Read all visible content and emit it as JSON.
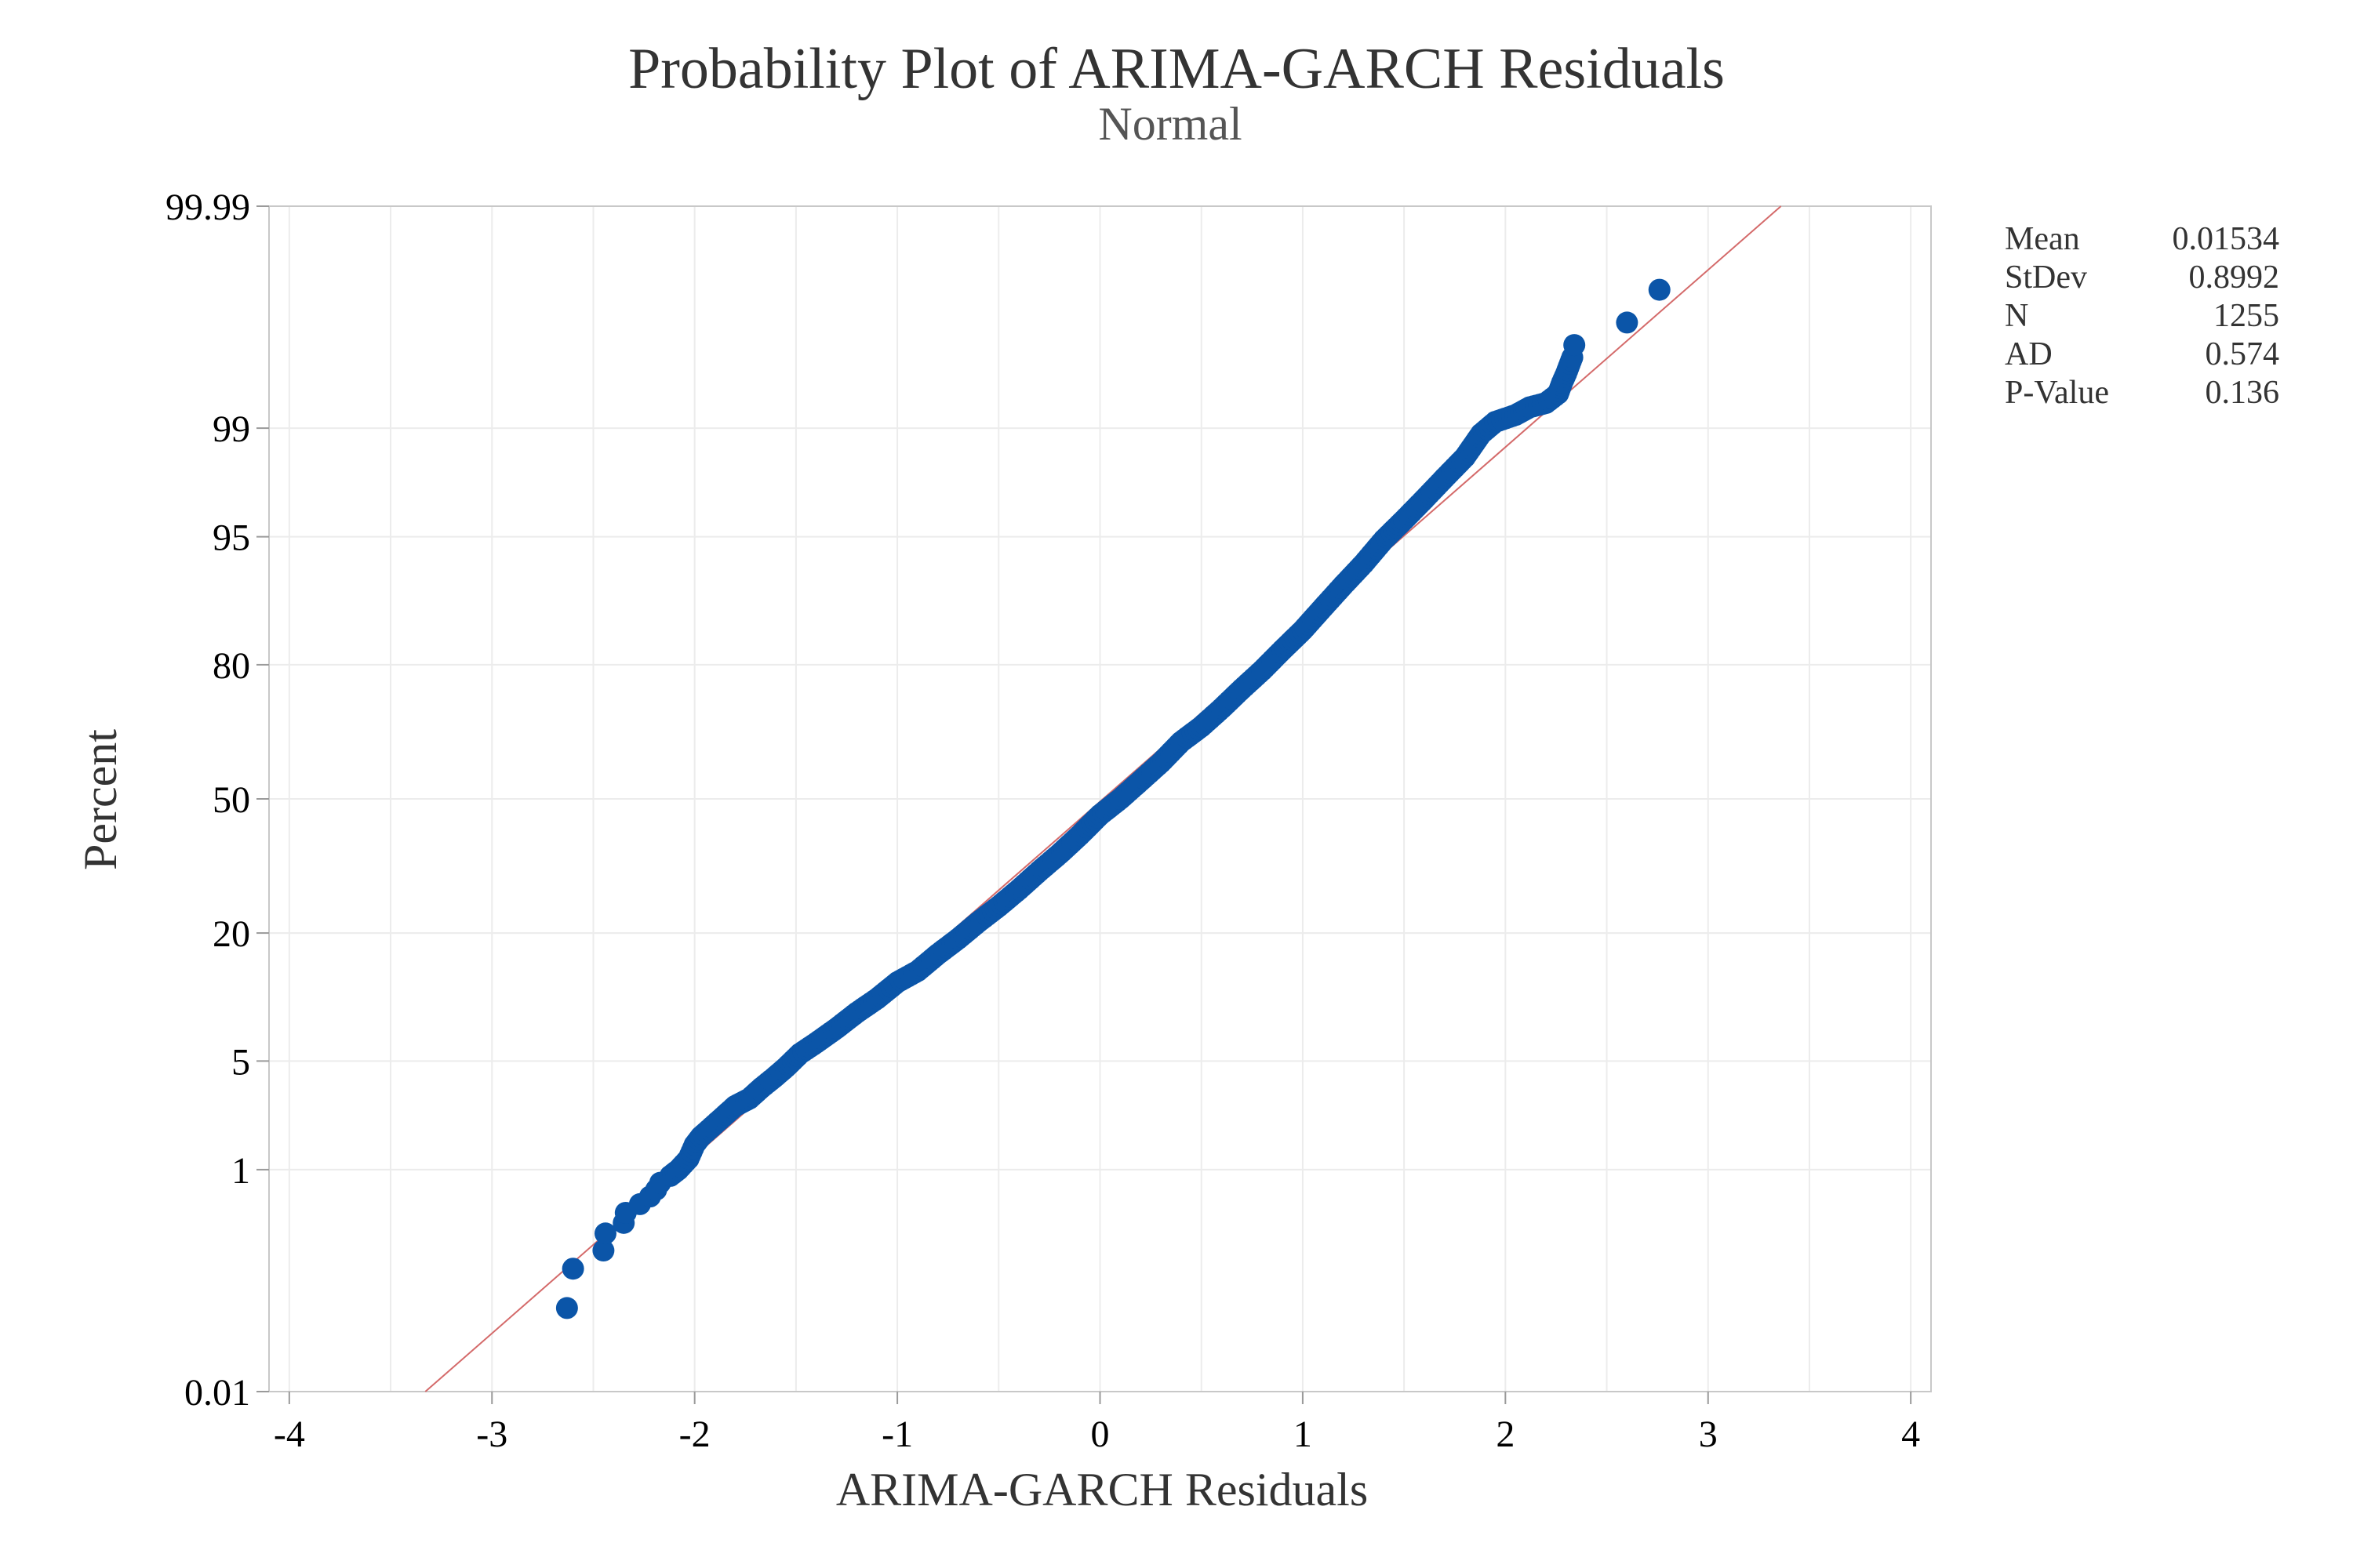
{
  "chart_data": {
    "type": "scatter",
    "title": "Probability Plot of ARIMA-GARCH Residuals",
    "subtitle": "Normal",
    "xlabel": "ARIMA-GARCH Residuals",
    "ylabel": "Percent",
    "xlim": [
      -4.1,
      4.1
    ],
    "ylim_percent": [
      0.01,
      99.99
    ],
    "y_scale": "normal-probability",
    "x_ticks": [
      -4,
      -3,
      -2,
      -1,
      0,
      1,
      2,
      3,
      4
    ],
    "x_tick_labels": [
      "-4",
      "-3",
      "-2",
      "-1",
      "0",
      "1",
      "2",
      "3",
      "4"
    ],
    "y_ticks": [
      0.01,
      1,
      5,
      20,
      50,
      80,
      95,
      99,
      99.99
    ],
    "y_tick_labels": [
      "0.01",
      "1",
      "5",
      "20",
      "50",
      "80",
      "95",
      "99",
      "99.99"
    ],
    "grid": true,
    "marker_color": "#0b55a8",
    "fit_line_color": "#d46a6a",
    "fit_line": {
      "mean": 0.01534,
      "stdev": 0.8992
    },
    "stats": [
      {
        "label": "Mean",
        "value": "0.01534"
      },
      {
        "label": "StDev",
        "value": "0.8992"
      },
      {
        "label": "N",
        "value": "1255"
      },
      {
        "label": "AD",
        "value": "0.574"
      },
      {
        "label": "P-Value",
        "value": "0.136"
      }
    ],
    "legend_position": "top-right",
    "points": [
      [
        -2.63,
        0.07
      ],
      [
        -2.6,
        0.16
      ],
      [
        -2.45,
        0.23
      ],
      [
        -2.44,
        0.32
      ],
      [
        -2.35,
        0.39
      ],
      [
        -2.34,
        0.47
      ],
      [
        -2.27,
        0.55
      ],
      [
        -2.22,
        0.63
      ],
      [
        -2.19,
        0.71
      ],
      [
        -2.17,
        0.8
      ],
      [
        -2.12,
        0.9
      ],
      [
        -2.08,
        1.0
      ],
      [
        -2.03,
        1.2
      ],
      [
        -2.0,
        1.5
      ],
      [
        -1.97,
        1.7
      ],
      [
        -1.93,
        1.9
      ],
      [
        -1.86,
        2.3
      ],
      [
        -1.8,
        2.7
      ],
      [
        -1.73,
        3.0
      ],
      [
        -1.67,
        3.5
      ],
      [
        -1.61,
        4.0
      ],
      [
        -1.55,
        4.6
      ],
      [
        -1.48,
        5.5
      ],
      [
        -1.4,
        6.3
      ],
      [
        -1.3,
        7.5
      ],
      [
        -1.2,
        9.0
      ],
      [
        -1.1,
        10.5
      ],
      [
        -1.0,
        12.5
      ],
      [
        -0.9,
        14.0
      ],
      [
        -0.8,
        16.5
      ],
      [
        -0.7,
        19.0
      ],
      [
        -0.6,
        22.0
      ],
      [
        -0.5,
        25.0
      ],
      [
        -0.4,
        28.5
      ],
      [
        -0.3,
        32.5
      ],
      [
        -0.2,
        36.5
      ],
      [
        -0.1,
        41.0
      ],
      [
        0.0,
        46.0
      ],
      [
        0.1,
        50.0
      ],
      [
        0.2,
        54.5
      ],
      [
        0.3,
        59.0
      ],
      [
        0.4,
        64.0
      ],
      [
        0.5,
        67.5
      ],
      [
        0.6,
        71.5
      ],
      [
        0.7,
        75.5
      ],
      [
        0.8,
        79.0
      ],
      [
        0.9,
        82.5
      ],
      [
        1.0,
        85.5
      ],
      [
        1.1,
        88.5
      ],
      [
        1.2,
        91.0
      ],
      [
        1.3,
        93.0
      ],
      [
        1.4,
        94.8
      ],
      [
        1.5,
        96.0
      ],
      [
        1.6,
        97.0
      ],
      [
        1.7,
        97.8
      ],
      [
        1.8,
        98.4
      ],
      [
        1.88,
        98.9
      ],
      [
        1.95,
        99.1
      ],
      [
        2.05,
        99.2
      ],
      [
        2.12,
        99.3
      ],
      [
        2.2,
        99.35
      ],
      [
        2.26,
        99.45
      ],
      [
        2.28,
        99.55
      ],
      [
        2.3,
        99.62
      ],
      [
        2.33,
        99.72
      ],
      [
        2.34,
        99.78
      ],
      [
        2.6,
        99.86
      ],
      [
        2.76,
        99.93
      ]
    ]
  }
}
